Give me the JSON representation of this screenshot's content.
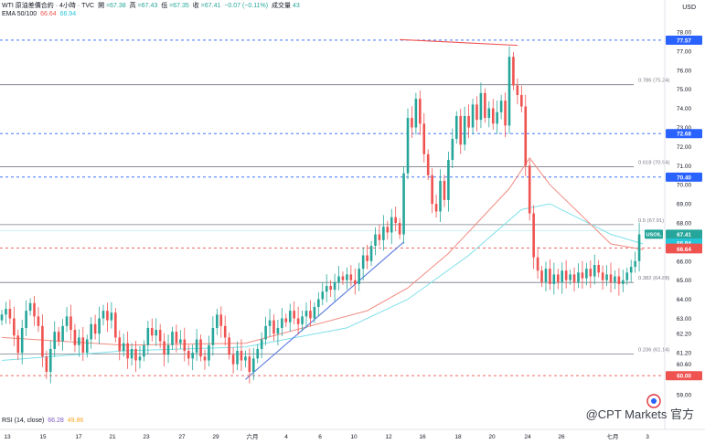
{
  "header": {
    "symbol": "WTI 原油差價合約 · 4小時 · TVC",
    "open_label": "開",
    "open": "=67.38",
    "high_label": "高",
    "high": "=67.43",
    "low_label": "低",
    "low": "=67.35",
    "close_label": "收",
    "close": "=67.41",
    "change": "−0.07 (−0.11%)",
    "volume_label": "成交量",
    "volume": "43",
    "ema_label": "EMA 50/100",
    "ema50": "66.64",
    "ema100": "66.94",
    "rsi_label": "RSI (14, close)",
    "rsi_value": "66.28",
    "rsi_ma": "49.86"
  },
  "currency": "USD",
  "watermark": "@CPT Markets 官方",
  "colors": {
    "up": "#26a69a",
    "down": "#ef5350",
    "ema50": "#f28b82",
    "ema100": "#7fe0ea",
    "blue_level": "#2962ff",
    "red_level": "#ef5350",
    "fib": "#787b86",
    "trend": "#5b7be0"
  },
  "chart_data": {
    "type": "candlestick",
    "symbol": "USOIL",
    "y_ticks": [
      59.0,
      60.0,
      60.6,
      61.2,
      62.2,
      63.0,
      64.0,
      65.0,
      66.0,
      67.0,
      68.0,
      69.0,
      70.0,
      71.0,
      72.0,
      73.0,
      74.0,
      75.0,
      76.0,
      77.0,
      78.0
    ],
    "x_ticks": [
      "13",
      "15",
      "17",
      "21",
      "23",
      "27",
      "29",
      "六月",
      "4",
      "6",
      "10",
      "12",
      "16",
      "18",
      "20",
      "24",
      "26",
      "七月",
      "3"
    ],
    "fib_levels": [
      {
        "ratio": "0.786",
        "value": 75.24,
        "label": "0.786 (75.24)"
      },
      {
        "ratio": "0.618",
        "value": 70.94,
        "label": "0.618 (70.94)"
      },
      {
        "ratio": "0.5",
        "value": 67.91,
        "label": "0.5 (67.91)"
      },
      {
        "ratio": "0.382",
        "value": 64.88,
        "label": "0.382 (64.88)"
      },
      {
        "ratio": "0.236",
        "value": 61.14,
        "label": "0.236 (61.14)"
      }
    ],
    "horizontal_levels": [
      {
        "value": 77.57,
        "style": "dashed",
        "color": "blue"
      },
      {
        "value": 72.68,
        "style": "dashed",
        "color": "blue"
      },
      {
        "value": 70.4,
        "style": "dashed",
        "color": "blue"
      },
      {
        "value": 66.68,
        "style": "dashed",
        "color": "red"
      },
      {
        "value": 60.0,
        "style": "dashed",
        "color": "red"
      }
    ],
    "price_labels": [
      {
        "text": "77.57",
        "value": 77.57,
        "color": "blue"
      },
      {
        "text": "72.68",
        "value": 72.68,
        "color": "blue"
      },
      {
        "text": "70.40",
        "value": 70.4,
        "color": "blue"
      },
      {
        "text": "67.41",
        "value": 67.41,
        "color": "green"
      },
      {
        "text": "03:55:31",
        "value": 67.05,
        "color": "green"
      },
      {
        "text": "66.94",
        "value": 66.94,
        "color": "cyan"
      },
      {
        "text": "66.68",
        "value": 66.68,
        "color": "red"
      },
      {
        "text": "66.64",
        "value": 66.64,
        "color": "red"
      },
      {
        "text": "60.00",
        "value": 60.0,
        "color": "red"
      }
    ],
    "symbol_tag": "USOIL",
    "last_price": 67.41,
    "countdown": "03:55:31",
    "closes": [
      63.2,
      63.5,
      63.0,
      62.1,
      61.2,
      62.5,
      63.4,
      63.8,
      63.1,
      62.6,
      61.0,
      60.2,
      61.4,
      62.3,
      61.8,
      62.6,
      63.1,
      62.4,
      61.6,
      62.0,
      61.2,
      61.9,
      62.7,
      62.2,
      63.0,
      63.4,
      62.9,
      63.3,
      62.0,
      61.3,
      61.7,
      60.9,
      61.4,
      60.8,
      61.0,
      61.6,
      62.5,
      62.1,
      62.4,
      61.8,
      61.1,
      61.6,
      62.3,
      61.7,
      61.9,
      61.3,
      60.9,
      61.2,
      61.9,
      61.0,
      60.8,
      61.6,
      62.5,
      63.2,
      62.6,
      62.0,
      61.1,
      60.6,
      61.3,
      60.8,
      61.0,
      60.2,
      60.9,
      61.4,
      61.9,
      62.6,
      62.9,
      62.2,
      62.5,
      63.0,
      62.8,
      63.4,
      63.0,
      62.7,
      63.1,
      63.4,
      63.0,
      63.6,
      64.0,
      64.4,
      64.7,
      64.5,
      64.9,
      65.2,
      65.0,
      65.3,
      65.0,
      64.8,
      65.6,
      66.3,
      66.0,
      66.8,
      67.4,
      67.1,
      67.8,
      67.5,
      68.3,
      68.0,
      67.4,
      70.6,
      73.5,
      73.0,
      74.5,
      73.2,
      71.6,
      70.5,
      69.0,
      68.6,
      70.2,
      69.2,
      71.3,
      72.4,
      73.6,
      72.1,
      73.6,
      73.0,
      74.2,
      73.4,
      74.8,
      73.5,
      74.0,
      73.2,
      73.8,
      74.4,
      73.1,
      76.7,
      75.2,
      74.7,
      74.1,
      71.0,
      68.5,
      66.2,
      65.5,
      64.9,
      65.6,
      64.8,
      65.3,
      64.9,
      65.5,
      65.0,
      65.3,
      64.9,
      65.4,
      65.1,
      65.6,
      65.2,
      65.8,
      65.4,
      65.0,
      65.3,
      64.9,
      65.2,
      64.8,
      65.0,
      65.4,
      65.7,
      66.0,
      67.4
    ],
    "ema50_points": [
      [
        0,
        62.0
      ],
      [
        30,
        61.6
      ],
      [
        60,
        61.7
      ],
      [
        90,
        63.4
      ],
      [
        100,
        64.6
      ],
      [
        110,
        66.4
      ],
      [
        125,
        69.8
      ],
      [
        130,
        71.4
      ],
      [
        135,
        70.0
      ],
      [
        150,
        66.9
      ],
      [
        158,
        66.6
      ]
    ],
    "ema100_points": [
      [
        0,
        60.8
      ],
      [
        30,
        61.3
      ],
      [
        60,
        61.5
      ],
      [
        85,
        62.5
      ],
      [
        100,
        64.0
      ],
      [
        115,
        66.3
      ],
      [
        128,
        68.7
      ],
      [
        135,
        69.0
      ],
      [
        150,
        67.4
      ],
      [
        158,
        66.9
      ]
    ],
    "trendlines": [
      {
        "from": [
          60,
          59.8
        ],
        "to": [
          99,
          67.0
        ],
        "color": "blue"
      },
      {
        "from": [
          98,
          77.6
        ],
        "to": [
          127,
          77.3
        ],
        "color": "red"
      }
    ]
  }
}
